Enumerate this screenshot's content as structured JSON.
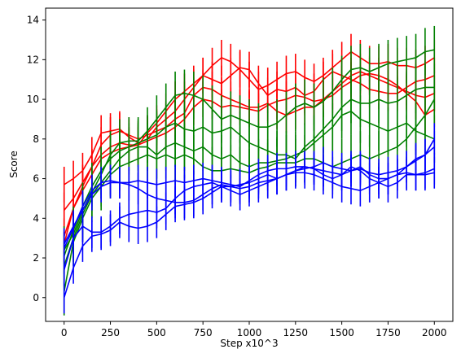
{
  "chart_data": {
    "type": "line",
    "title": "",
    "xlabel": "Step x10^3",
    "ylabel": "Score",
    "xlim": [
      -100,
      2100
    ],
    "ylim": [
      -1.2,
      14.6
    ],
    "xticks": [
      0,
      250,
      500,
      750,
      1000,
      1250,
      1500,
      1750,
      2000
    ],
    "yticks": [
      0,
      2,
      4,
      6,
      8,
      10,
      12,
      14
    ],
    "xtick_labels": [
      "0",
      "250",
      "500",
      "750",
      "1000",
      "1250",
      "1500",
      "1750",
      "2000"
    ],
    "ytick_labels": [
      "0",
      "2",
      "4",
      "6",
      "8",
      "10",
      "12",
      "14"
    ],
    "grid": false,
    "legend": null,
    "error_bars": true,
    "x": [
      0,
      50,
      100,
      150,
      200,
      250,
      300,
      350,
      400,
      450,
      500,
      550,
      600,
      650,
      700,
      750,
      800,
      850,
      900,
      950,
      1000,
      1050,
      1100,
      1150,
      1200,
      1250,
      1300,
      1350,
      1400,
      1450,
      1500,
      1550,
      1600,
      1650,
      1700,
      1750,
      1800,
      1850,
      1900,
      1950,
      2000
    ],
    "series": [
      {
        "color": "#ff0000",
        "values": [
          5.7,
          6.0,
          6.4,
          7.2,
          8.3,
          8.4,
          8.5,
          8.1,
          7.8,
          8.0,
          8.6,
          9.0,
          9.4,
          10.0,
          10.6,
          11.2,
          11.7,
          12.1,
          11.9,
          11.5,
          11.0,
          10.5,
          10.7,
          11.0,
          11.3,
          11.4,
          11.1,
          10.9,
          11.2,
          11.6,
          12.0,
          12.4,
          12.1,
          11.8,
          11.8,
          11.9,
          11.7,
          11.7,
          11.6,
          11.8,
          12.1
        ],
        "errors": [
          0.9,
          0.9,
          0.9,
          0.9,
          0.9,
          0.9,
          0.9,
          0.9,
          0.9,
          0.9,
          0.9,
          0.9,
          0.9,
          0.9,
          0.9,
          0.9,
          0.9,
          0.9,
          0.9,
          0.9,
          0.9,
          0.9,
          0.9,
          0.9,
          0.9,
          0.9,
          0.9,
          0.9,
          0.9,
          0.9,
          0.9,
          0.9,
          0.9,
          0.9,
          0.9,
          0.9,
          0.9,
          0.9,
          0.9,
          0.9,
          0.9
        ]
      },
      {
        "color": "#ff0000",
        "values": [
          4.4,
          5.0,
          5.8,
          6.6,
          7.2,
          7.6,
          7.8,
          7.7,
          7.7,
          8.3,
          8.8,
          9.4,
          10.0,
          10.4,
          10.8,
          11.2,
          11.0,
          10.8,
          11.2,
          11.6,
          11.5,
          10.8,
          10.2,
          10.5,
          10.4,
          10.6,
          10.2,
          10.4,
          11.0,
          11.4,
          11.2,
          11.0,
          10.8,
          10.5,
          10.4,
          10.3,
          10.3,
          10.6,
          10.9,
          11.0,
          11.2
        ],
        "errors": [
          0.9,
          0.9,
          0.9,
          0.9,
          0.9,
          0.9,
          0.9,
          0.9,
          0.9,
          0.9,
          0.9,
          0.9,
          0.9,
          0.9,
          0.9,
          0.9,
          0.9,
          0.9,
          0.9,
          0.9,
          0.9,
          0.9,
          0.9,
          0.9,
          0.9,
          0.9,
          0.9,
          0.9,
          0.9,
          0.9,
          0.9,
          0.9,
          0.9,
          0.9,
          0.9,
          0.9,
          0.9,
          0.9,
          0.9,
          0.9,
          0.9
        ]
      },
      {
        "color": "#ff0000",
        "values": [
          3.1,
          4.5,
          5.6,
          6.6,
          7.7,
          8.2,
          8.4,
          8.2,
          8.0,
          8.2,
          8.4,
          8.6,
          9.0,
          9.3,
          10.2,
          10.6,
          10.5,
          10.2,
          10.0,
          9.8,
          9.6,
          9.6,
          9.8,
          9.4,
          9.2,
          9.4,
          9.6,
          9.6,
          10.0,
          10.4,
          10.8,
          11.2,
          11.4,
          11.2,
          11.0,
          10.8,
          10.6,
          10.4,
          10.2,
          10.1,
          10.3
        ],
        "errors": [
          0.9,
          0.9,
          0.9,
          0.9,
          0.9,
          0.9,
          0.9,
          0.9,
          0.9,
          0.9,
          0.9,
          0.9,
          0.9,
          0.9,
          0.9,
          0.9,
          0.9,
          0.9,
          0.9,
          0.9,
          0.9,
          0.9,
          0.9,
          0.9,
          0.9,
          0.9,
          0.9,
          0.9,
          0.9,
          0.9,
          0.9,
          0.9,
          0.9,
          0.9,
          0.9,
          0.9,
          0.9,
          0.9,
          0.9,
          0.9,
          0.9
        ]
      },
      {
        "color": "#ff0000",
        "values": [
          2.7,
          4.5,
          5.4,
          6.2,
          7.0,
          7.3,
          7.5,
          7.6,
          7.7,
          7.9,
          8.1,
          8.3,
          8.6,
          9.0,
          9.6,
          10.0,
          9.9,
          9.6,
          9.7,
          9.6,
          9.5,
          9.4,
          9.7,
          9.9,
          10.0,
          10.2,
          10.1,
          9.9,
          10.0,
          10.2,
          10.6,
          10.9,
          11.2,
          11.3,
          11.2,
          11.0,
          10.7,
          10.3,
          9.9,
          9.2,
          9.5
        ],
        "errors": [
          0.9,
          0.9,
          0.9,
          0.9,
          0.9,
          0.9,
          0.9,
          0.9,
          0.9,
          0.9,
          0.9,
          0.9,
          0.9,
          0.9,
          0.9,
          0.9,
          0.9,
          0.9,
          0.9,
          0.9,
          0.9,
          0.9,
          0.9,
          0.9,
          0.9,
          0.9,
          0.9,
          0.9,
          0.9,
          0.9,
          0.9,
          0.9,
          0.9,
          0.9,
          0.9,
          0.9,
          0.9,
          0.9,
          0.9,
          0.9,
          0.9
        ]
      },
      {
        "color": "#008000",
        "values": [
          2.4,
          3.2,
          4.4,
          5.3,
          6.2,
          7.2,
          7.8,
          7.9,
          7.9,
          8.4,
          9.0,
          9.6,
          10.2,
          10.3,
          10.2,
          10.0,
          9.5,
          9.0,
          9.2,
          9.0,
          8.8,
          8.6,
          8.6,
          8.8,
          9.2,
          9.6,
          9.8,
          9.6,
          9.9,
          10.4,
          11.0,
          11.5,
          11.6,
          11.4,
          11.6,
          11.8,
          11.9,
          12.0,
          12.1,
          12.4,
          12.5
        ],
        "errors": [
          1.2,
          1.2,
          1.2,
          1.2,
          1.2,
          1.2,
          1.2,
          1.2,
          1.2,
          1.2,
          1.2,
          1.2,
          1.2,
          1.2,
          1.2,
          1.2,
          1.2,
          1.2,
          1.2,
          1.2,
          1.2,
          1.2,
          1.2,
          1.2,
          1.2,
          1.2,
          1.2,
          1.2,
          1.2,
          1.2,
          1.2,
          1.2,
          1.2,
          1.2,
          1.2,
          1.2,
          1.2,
          1.2,
          1.2,
          1.2,
          1.2
        ]
      },
      {
        "color": "#008000",
        "values": [
          2.1,
          3.4,
          4.6,
          5.6,
          6.4,
          7.0,
          7.4,
          7.6,
          7.8,
          8.0,
          8.2,
          8.6,
          8.8,
          8.5,
          8.4,
          8.6,
          8.3,
          8.4,
          8.6,
          8.2,
          7.8,
          7.6,
          7.4,
          7.2,
          7.2,
          7.0,
          7.6,
          8.0,
          8.5,
          9.0,
          9.6,
          10.0,
          9.8,
          9.8,
          10.0,
          9.8,
          9.9,
          10.2,
          10.5,
          10.6,
          10.6
        ],
        "errors": [
          1.2,
          1.2,
          1.2,
          1.2,
          1.2,
          1.2,
          1.2,
          1.2,
          1.2,
          1.2,
          1.2,
          1.2,
          1.2,
          1.2,
          1.2,
          1.2,
          1.2,
          1.2,
          1.2,
          1.2,
          1.2,
          1.2,
          1.2,
          1.2,
          1.2,
          1.2,
          1.2,
          1.2,
          1.2,
          1.2,
          1.2,
          1.2,
          1.2,
          1.2,
          1.2,
          1.2,
          1.2,
          1.2,
          1.2,
          1.2,
          1.2
        ]
      },
      {
        "color": "#008000",
        "values": [
          1.6,
          3.0,
          4.2,
          5.2,
          5.8,
          6.4,
          7.0,
          7.4,
          7.6,
          7.6,
          7.2,
          7.6,
          7.8,
          7.6,
          7.4,
          7.6,
          7.2,
          7.0,
          7.2,
          6.8,
          6.6,
          6.8,
          6.8,
          6.9,
          7.0,
          7.2,
          7.4,
          7.8,
          8.2,
          8.6,
          9.2,
          9.4,
          9.0,
          8.8,
          8.6,
          8.4,
          8.6,
          8.8,
          8.4,
          8.2,
          8.0
        ],
        "errors": [
          1.2,
          1.2,
          1.2,
          1.2,
          1.2,
          1.2,
          1.2,
          1.2,
          1.2,
          1.2,
          1.2,
          1.2,
          1.2,
          1.2,
          1.2,
          1.2,
          1.2,
          1.2,
          1.2,
          1.2,
          1.2,
          1.2,
          1.2,
          1.2,
          1.2,
          1.2,
          1.2,
          1.2,
          1.2,
          1.2,
          1.2,
          1.2,
          1.2,
          1.2,
          1.2,
          1.2,
          1.2,
          1.2,
          1.2,
          1.2,
          1.2
        ]
      },
      {
        "color": "#008000",
        "values": [
          0.3,
          2.8,
          4.0,
          5.0,
          5.6,
          6.2,
          6.6,
          6.8,
          7.0,
          7.2,
          7.0,
          7.2,
          7.0,
          7.2,
          7.0,
          6.6,
          6.4,
          6.4,
          6.5,
          6.4,
          6.3,
          6.5,
          6.6,
          6.8,
          6.8,
          6.8,
          7.0,
          7.0,
          6.8,
          6.6,
          6.8,
          7.0,
          7.2,
          7.0,
          7.2,
          7.4,
          7.6,
          8.0,
          8.6,
          9.2,
          10.0
        ],
        "errors": [
          1.2,
          1.2,
          1.2,
          1.2,
          1.2,
          1.2,
          1.2,
          1.2,
          1.2,
          1.2,
          1.2,
          1.2,
          1.2,
          1.2,
          1.2,
          1.2,
          1.2,
          1.2,
          1.2,
          1.2,
          1.2,
          1.2,
          1.2,
          1.2,
          1.2,
          1.2,
          1.2,
          1.2,
          1.2,
          1.2,
          1.2,
          1.2,
          1.2,
          1.2,
          1.2,
          1.2,
          1.2,
          1.2,
          1.2,
          1.2,
          1.2
        ]
      },
      {
        "color": "#0000ff",
        "values": [
          2.7,
          3.6,
          4.4,
          5.2,
          5.6,
          5.8,
          5.8,
          5.7,
          5.5,
          5.2,
          5.0,
          4.9,
          4.8,
          4.8,
          4.9,
          5.2,
          5.5,
          5.7,
          5.6,
          5.5,
          5.6,
          5.8,
          5.9,
          6.0,
          6.2,
          6.3,
          6.3,
          6.2,
          6.0,
          5.8,
          5.6,
          5.5,
          5.4,
          5.6,
          5.8,
          6.0,
          6.2,
          6.3,
          6.2,
          6.3,
          6.5
        ],
        "errors": [
          0.8,
          0.8,
          0.8,
          0.8,
          0.8,
          0.8,
          0.8,
          0.8,
          0.8,
          0.8,
          0.8,
          0.8,
          0.8,
          0.8,
          0.8,
          0.8,
          0.8,
          0.8,
          0.8,
          0.8,
          0.8,
          0.8,
          0.8,
          0.8,
          0.8,
          0.8,
          0.8,
          0.8,
          0.8,
          0.8,
          0.8,
          0.8,
          0.8,
          0.8,
          0.8,
          0.8,
          0.8,
          0.8,
          0.8,
          0.8,
          0.8
        ]
      },
      {
        "color": "#0000ff",
        "values": [
          2.5,
          3.5,
          4.6,
          5.4,
          5.8,
          5.9,
          5.8,
          5.8,
          5.9,
          5.8,
          5.7,
          5.8,
          5.9,
          5.8,
          5.9,
          6.0,
          5.9,
          5.8,
          5.7,
          5.6,
          5.9,
          6.2,
          6.4,
          6.5,
          6.5,
          6.6,
          6.6,
          6.5,
          6.4,
          6.3,
          6.2,
          6.4,
          6.5,
          6.3,
          6.2,
          6.3,
          6.4,
          6.6,
          6.9,
          7.2,
          7.6
        ],
        "errors": [
          0.8,
          0.8,
          0.8,
          0.8,
          0.8,
          0.8,
          0.8,
          0.8,
          0.8,
          0.8,
          0.8,
          0.8,
          0.8,
          0.8,
          0.8,
          0.8,
          0.8,
          0.8,
          0.8,
          0.8,
          0.8,
          0.8,
          0.8,
          0.8,
          0.8,
          0.8,
          0.8,
          0.8,
          0.8,
          0.8,
          0.8,
          0.8,
          0.8,
          0.8,
          0.8,
          0.8,
          0.8,
          0.8,
          0.8,
          0.8,
          0.8
        ]
      },
      {
        "color": "#0000ff",
        "values": [
          1.4,
          3.0,
          3.6,
          3.3,
          3.3,
          3.6,
          4.0,
          4.2,
          4.3,
          4.4,
          4.3,
          4.5,
          5.0,
          5.4,
          5.6,
          5.7,
          5.8,
          5.6,
          5.4,
          5.2,
          5.4,
          5.6,
          5.8,
          6.0,
          6.2,
          6.4,
          6.5,
          6.6,
          6.8,
          6.6,
          6.5,
          6.4,
          6.6,
          6.2,
          6.0,
          6.0,
          6.2,
          6.6,
          7.0,
          7.2,
          8.0
        ],
        "errors": [
          0.8,
          0.8,
          0.8,
          0.8,
          0.8,
          0.8,
          0.8,
          0.8,
          0.8,
          0.8,
          0.8,
          0.8,
          0.8,
          0.8,
          0.8,
          0.8,
          0.8,
          0.8,
          0.8,
          0.8,
          0.8,
          0.8,
          0.8,
          0.8,
          0.8,
          0.8,
          0.8,
          0.8,
          0.8,
          0.8,
          0.8,
          0.8,
          0.8,
          0.8,
          0.8,
          0.8,
          0.8,
          0.8,
          0.8,
          0.8,
          0.8
        ]
      },
      {
        "color": "#0000ff",
        "values": [
          0.0,
          1.5,
          2.6,
          3.1,
          3.2,
          3.4,
          3.8,
          3.6,
          3.5,
          3.6,
          3.8,
          4.2,
          4.6,
          4.7,
          4.8,
          5.0,
          5.3,
          5.6,
          5.6,
          5.7,
          5.8,
          6.0,
          6.2,
          6.0,
          6.2,
          6.4,
          6.6,
          6.5,
          6.2,
          6.0,
          6.2,
          6.6,
          6.4,
          6.0,
          5.8,
          5.6,
          5.8,
          6.2,
          6.2,
          6.2,
          6.3
        ],
        "errors": [
          0.8,
          0.8,
          0.8,
          0.8,
          0.8,
          0.8,
          0.8,
          0.8,
          0.8,
          0.8,
          0.8,
          0.8,
          0.8,
          0.8,
          0.8,
          0.8,
          0.8,
          0.8,
          0.8,
          0.8,
          0.8,
          0.8,
          0.8,
          0.8,
          0.8,
          0.8,
          0.8,
          0.8,
          0.8,
          0.8,
          0.8,
          0.8,
          0.8,
          0.8,
          0.8,
          0.8,
          0.8,
          0.8,
          0.8,
          0.8,
          0.8
        ]
      }
    ]
  }
}
